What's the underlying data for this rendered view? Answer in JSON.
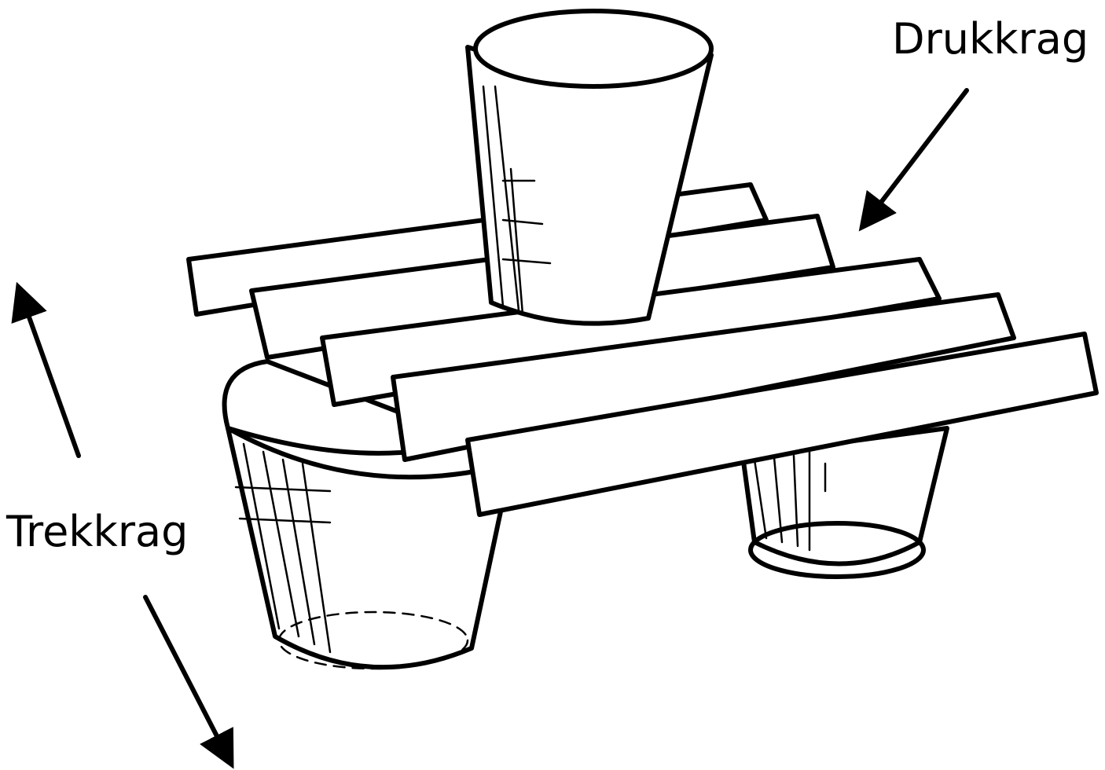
{
  "labels": {
    "compression": "Drukkrag",
    "tension": "Trekkrag"
  },
  "colors": {
    "ink": "#000000",
    "paper": "#ffffff"
  }
}
